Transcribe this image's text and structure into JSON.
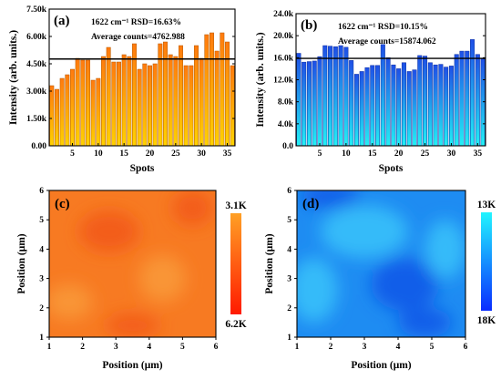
{
  "chart_data": [
    {
      "id": "a",
      "type": "bar",
      "panel_label": "(a)",
      "annotation_line1": "1622 cm⁻¹  RSD=16.63%",
      "annotation_line2": "Average counts=4762.988",
      "xlabel": "Spots",
      "ylabel": "Intensity (arb. units.)",
      "ylim": [
        0,
        7500
      ],
      "yticks": [
        0,
        1500,
        3000,
        4500,
        6000,
        7500
      ],
      "ytick_labels": [
        "0.00",
        "1.50k",
        "3.00k",
        "4.50k",
        "6.00k",
        "7.50k"
      ],
      "xlim": [
        0.5,
        36.5
      ],
      "xticks": [
        5,
        10,
        15,
        20,
        25,
        30,
        35
      ],
      "average_line": 4763,
      "colors": {
        "bar_top": "#ff7a0e",
        "bar_bottom": "#ffd200",
        "bar_edge": "#b55a00",
        "avg_line": "#000000"
      },
      "x": [
        1,
        2,
        3,
        4,
        5,
        6,
        7,
        8,
        9,
        10,
        11,
        12,
        13,
        14,
        15,
        16,
        17,
        18,
        19,
        20,
        21,
        22,
        23,
        24,
        25,
        26,
        27,
        28,
        29,
        30,
        31,
        32,
        33,
        34,
        35,
        36
      ],
      "values": [
        3300,
        3100,
        3700,
        3900,
        4200,
        4800,
        4700,
        4700,
        3600,
        3700,
        4900,
        5400,
        4600,
        4600,
        5000,
        4900,
        5600,
        4200,
        4500,
        4400,
        4500,
        5600,
        5700,
        5000,
        4900,
        5500,
        4400,
        4400,
        5500,
        4800,
        6100,
        6200,
        5200,
        6200,
        5700,
        4400
      ]
    },
    {
      "id": "b",
      "type": "bar",
      "panel_label": "(b)",
      "annotation_line1": "1622 cm⁻¹  RSD=10.15%",
      "annotation_line2": "Average counts=15874.062",
      "xlabel": "Spots",
      "ylabel": "Intensity (arb. units.)",
      "ylim": [
        0,
        24000
      ],
      "yticks": [
        0,
        4000,
        8000,
        12000,
        16000,
        20000,
        24000
      ],
      "ytick_labels": [
        "0.0",
        "4.0k",
        "8.0k",
        "12.0k",
        "16.0k",
        "20.0k",
        "24.0k"
      ],
      "xlim": [
        0.5,
        36.5
      ],
      "xticks": [
        5,
        10,
        15,
        20,
        25,
        30,
        35
      ],
      "average_line": 15874,
      "colors": {
        "bar_top": "#1f4fe6",
        "bar_bottom": "#23f0f5",
        "bar_edge": "#0b2fa0",
        "avg_line": "#000000"
      },
      "x": [
        1,
        2,
        3,
        4,
        5,
        6,
        7,
        8,
        9,
        10,
        11,
        12,
        13,
        14,
        15,
        16,
        17,
        18,
        19,
        20,
        21,
        22,
        23,
        24,
        25,
        26,
        27,
        28,
        29,
        30,
        31,
        32,
        33,
        34,
        35,
        36
      ],
      "values": [
        16800,
        15200,
        15300,
        15400,
        16200,
        18200,
        18100,
        18000,
        18200,
        17900,
        15500,
        13000,
        13500,
        14200,
        14600,
        14600,
        18400,
        16000,
        14700,
        14000,
        15100,
        13500,
        13800,
        16400,
        16300,
        15100,
        14700,
        14800,
        14300,
        14500,
        16600,
        17200,
        17200,
        19300,
        16600,
        15800
      ]
    },
    {
      "id": "c",
      "type": "heatmap",
      "panel_label": "(c)",
      "xlabel": "Position (μm)",
      "ylabel": "Position (μm)",
      "xlim": [
        1,
        6
      ],
      "ylim": [
        1,
        6
      ],
      "xticks": [
        1,
        2,
        3,
        4,
        5,
        6
      ],
      "yticks": [
        1,
        2,
        3,
        4,
        5,
        6
      ],
      "colorbar": {
        "top_label": "3.1K",
        "bottom_label": "6.2K",
        "top_color": "#ffa025",
        "bottom_color": "#ff1a00"
      },
      "colors": {
        "base": "#f77a22",
        "light": "#f99a3a",
        "dark": "#f25818"
      }
    },
    {
      "id": "d",
      "type": "heatmap",
      "panel_label": "(d)",
      "xlabel": "Position (μm)",
      "ylabel": "Position (μm)",
      "xlim": [
        1,
        6
      ],
      "ylim": [
        1,
        6
      ],
      "xticks": [
        1,
        2,
        3,
        4,
        5,
        6
      ],
      "yticks": [
        1,
        2,
        3,
        4,
        5,
        6
      ],
      "colorbar": {
        "top_label": "13K",
        "bottom_label": "18K",
        "top_color": "#22f5ff",
        "bottom_color": "#0a2cff"
      },
      "colors": {
        "base": "#1e8cf2",
        "light": "#38c3fa",
        "dark": "#0a56e8"
      }
    }
  ]
}
